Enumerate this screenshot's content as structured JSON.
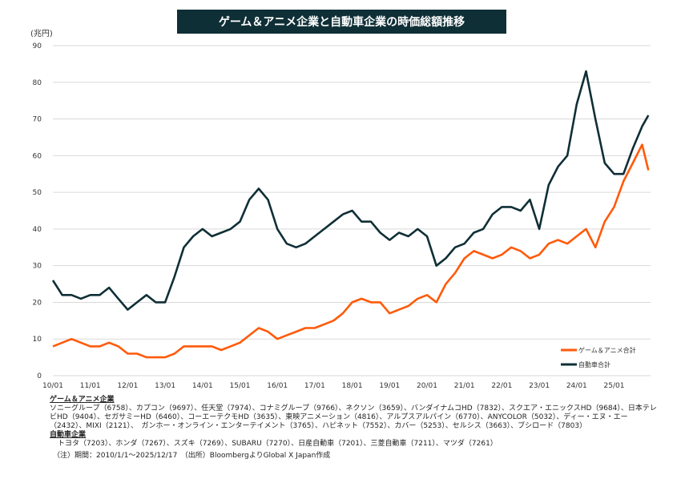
{
  "title": "ゲーム＆アニメ企業と自動車企業の時価総額推移",
  "chart_data": {
    "type": "line",
    "title": "ゲーム＆アニメ企業と自動車企業の時価総額推移",
    "ylabel": "(兆円)",
    "ylim": [
      0,
      90
    ],
    "yticks": [
      "0",
      "10",
      "20",
      "30",
      "40",
      "50",
      "60",
      "70",
      "80",
      "90"
    ],
    "xticks": [
      "10/01",
      "11/01",
      "12/01",
      "13/01",
      "14/01",
      "15/01",
      "16/01",
      "17/01",
      "18/01",
      "19/01",
      "20/01",
      "21/01",
      "22/01",
      "23/01",
      "24/01",
      "25/01"
    ],
    "grid": true,
    "legend_position": "bottom-right",
    "x": [
      "2010-01",
      "2010-04",
      "2010-07",
      "2010-10",
      "2011-01",
      "2011-04",
      "2011-07",
      "2011-10",
      "2012-01",
      "2012-04",
      "2012-07",
      "2012-10",
      "2013-01",
      "2013-04",
      "2013-07",
      "2013-10",
      "2014-01",
      "2014-04",
      "2014-07",
      "2014-10",
      "2015-01",
      "2015-04",
      "2015-07",
      "2015-10",
      "2016-01",
      "2016-04",
      "2016-07",
      "2016-10",
      "2017-01",
      "2017-04",
      "2017-07",
      "2017-10",
      "2018-01",
      "2018-04",
      "2018-07",
      "2018-10",
      "2019-01",
      "2019-04",
      "2019-07",
      "2019-10",
      "2020-01",
      "2020-04",
      "2020-07",
      "2020-10",
      "2021-01",
      "2021-04",
      "2021-07",
      "2021-10",
      "2022-01",
      "2022-04",
      "2022-07",
      "2022-10",
      "2023-01",
      "2023-04",
      "2023-07",
      "2023-10",
      "2024-01",
      "2024-04",
      "2024-07",
      "2024-10",
      "2025-01",
      "2025-04",
      "2025-07",
      "2025-10",
      "2025-12"
    ],
    "series": [
      {
        "name": "ゲーム＆アニメ合計",
        "color": "#ff5a0a",
        "values": [
          8,
          9,
          10,
          9,
          8,
          8,
          9,
          8,
          6,
          6,
          5,
          5,
          5,
          6,
          8,
          8,
          8,
          8,
          7,
          8,
          9,
          11,
          13,
          12,
          10,
          11,
          12,
          13,
          13,
          14,
          15,
          17,
          20,
          21,
          20,
          20,
          17,
          18,
          19,
          21,
          22,
          20,
          25,
          28,
          32,
          34,
          33,
          32,
          33,
          35,
          34,
          32,
          33,
          36,
          37,
          36,
          38,
          40,
          35,
          42,
          46,
          53,
          58,
          63,
          56
        ]
      },
      {
        "name": "自動車合計",
        "color": "#0f2f36",
        "values": [
          26,
          22,
          22,
          21,
          22,
          22,
          24,
          21,
          18,
          20,
          22,
          20,
          20,
          27,
          35,
          38,
          40,
          38,
          39,
          40,
          42,
          48,
          51,
          48,
          40,
          36,
          35,
          36,
          38,
          40,
          42,
          44,
          45,
          42,
          42,
          39,
          37,
          39,
          38,
          40,
          38,
          30,
          32,
          35,
          36,
          39,
          40,
          44,
          46,
          46,
          45,
          48,
          40,
          52,
          57,
          60,
          74,
          83,
          70,
          58,
          55,
          55,
          62,
          68,
          71
        ]
      }
    ]
  },
  "notes": {
    "game_header": "ゲーム＆アニメ企業",
    "game_list": "ソニーグループ（6758）、カプコン（9697）、任天堂（7974）、コナミグループ（9766）、ネクソン（3659）、バンダイナムコHD（7832）、スクエア・エニックスHD（9684）、日本テレビHD（9404）、セガサミーHD（6460）、コーエーテクモHD（3635）、東映アニメーション（4816）、アルプスアルパイン（6770）、ANYCOLOR（5032）、ディー・エヌ・エー（2432）、MIXI（2121）、　ガンホー・オンライン・エンターテイメント（3765）、ハピネット（7552）、カバー（5253）、セルシス（3663）、ブシロード（7803）",
    "auto_header": "自動車企業",
    "auto_list": "トヨタ（7203）、ホンダ（7267）、スズキ（7269）、SUBARU（7270）、日産自動車（7201）、三菱自動車（7211）、マツダ（7261）",
    "source": "（注）期間：2010/1/1～2025/12/17　（出所）BloombergよりGlobal X Japan作成"
  }
}
